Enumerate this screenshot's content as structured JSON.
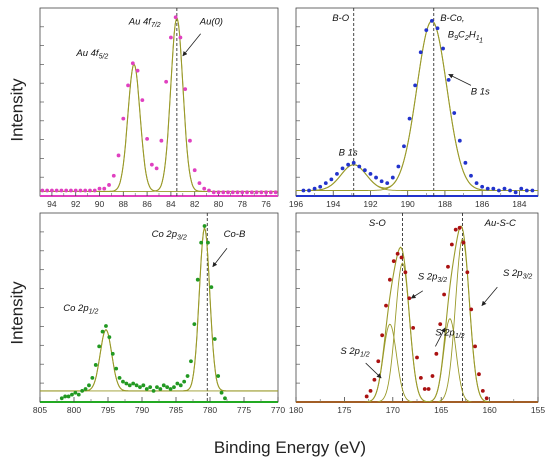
{
  "figure": {
    "ylabel": "Intensity",
    "xlabel": "Binding Energy (eV)"
  },
  "chart_data": [
    {
      "id": "au4f",
      "type": "scatter",
      "xlabel": "",
      "ylabel": "Intensity",
      "xlim": [
        95,
        75
      ],
      "ylim": [
        0,
        1.02
      ],
      "xticks": [
        94,
        92,
        90,
        88,
        86,
        84,
        82,
        80,
        78,
        76
      ],
      "axis_color": "#e040c0",
      "point_color": "#e040c0",
      "fit_color": "#9a9a2a",
      "points": [
        [
          94.8,
          0.03
        ],
        [
          94.4,
          0.03
        ],
        [
          94.0,
          0.03
        ],
        [
          93.6,
          0.03
        ],
        [
          93.2,
          0.03
        ],
        [
          92.8,
          0.03
        ],
        [
          92.4,
          0.03
        ],
        [
          92.0,
          0.03
        ],
        [
          91.6,
          0.03
        ],
        [
          91.2,
          0.03
        ],
        [
          90.8,
          0.03
        ],
        [
          90.4,
          0.03
        ],
        [
          90.0,
          0.04
        ],
        [
          89.6,
          0.04
        ],
        [
          89.2,
          0.06
        ],
        [
          88.8,
          0.11
        ],
        [
          88.4,
          0.22
        ],
        [
          88.0,
          0.42
        ],
        [
          87.6,
          0.6
        ],
        [
          87.2,
          0.72
        ],
        [
          86.8,
          0.68
        ],
        [
          86.4,
          0.52
        ],
        [
          86.0,
          0.31
        ],
        [
          85.6,
          0.17
        ],
        [
          85.2,
          0.15
        ],
        [
          84.8,
          0.3
        ],
        [
          84.4,
          0.62
        ],
        [
          84.0,
          0.86
        ],
        [
          83.6,
          0.97
        ],
        [
          83.2,
          0.86
        ],
        [
          82.8,
          0.58
        ],
        [
          82.4,
          0.3
        ],
        [
          82.0,
          0.14
        ],
        [
          81.6,
          0.07
        ],
        [
          81.2,
          0.04
        ],
        [
          80.8,
          0.03
        ],
        [
          80.4,
          0.02
        ],
        [
          80.0,
          0.02
        ],
        [
          79.6,
          0.02
        ],
        [
          79.2,
          0.02
        ],
        [
          78.8,
          0.02
        ],
        [
          78.4,
          0.02
        ],
        [
          78.0,
          0.02
        ],
        [
          77.6,
          0.02
        ],
        [
          77.2,
          0.02
        ],
        [
          76.8,
          0.02
        ],
        [
          76.4,
          0.02
        ],
        [
          76.0,
          0.02
        ],
        [
          75.6,
          0.02
        ],
        [
          75.2,
          0.02
        ]
      ],
      "fit_peaks": [
        {
          "center": 87.1,
          "height": 0.69,
          "fwhm": 1.2
        },
        {
          "center": 83.5,
          "height": 0.94,
          "fwhm": 1.2
        }
      ],
      "baseline": 0.025,
      "ref_lines": [
        83.5
      ],
      "annotations": [
        {
          "text": "Au 4f",
          "sub": "5/2",
          "x": 90.6,
          "y": 0.76
        },
        {
          "text": "Au 4f",
          "sub": "7/2",
          "x": 86.2,
          "y": 0.93
        },
        {
          "text": "Au(0)",
          "x": 80.6,
          "y": 0.93
        }
      ],
      "arrows": [
        {
          "from": [
            81.5,
            0.88
          ],
          "to": [
            83.0,
            0.76
          ]
        }
      ]
    },
    {
      "id": "b1s",
      "type": "scatter",
      "xlabel": "",
      "ylabel": "",
      "xlim": [
        196,
        183
      ],
      "ylim": [
        0,
        1.02
      ],
      "xticks": [
        196,
        194,
        192,
        190,
        188,
        186,
        184
      ],
      "axis_color": "#2233cc",
      "point_color": "#2233cc",
      "fit_color": "#9a9a2a",
      "points": [
        [
          195.6,
          0.03
        ],
        [
          195.3,
          0.03
        ],
        [
          195.0,
          0.04
        ],
        [
          194.7,
          0.05
        ],
        [
          194.4,
          0.07
        ],
        [
          194.1,
          0.09
        ],
        [
          193.8,
          0.12
        ],
        [
          193.5,
          0.15
        ],
        [
          193.2,
          0.17
        ],
        [
          192.9,
          0.18
        ],
        [
          192.6,
          0.16
        ],
        [
          192.3,
          0.14
        ],
        [
          192.0,
          0.12
        ],
        [
          191.7,
          0.1
        ],
        [
          191.4,
          0.08
        ],
        [
          191.1,
          0.07
        ],
        [
          190.8,
          0.1
        ],
        [
          190.5,
          0.16
        ],
        [
          190.2,
          0.27
        ],
        [
          189.9,
          0.42
        ],
        [
          189.6,
          0.6
        ],
        [
          189.3,
          0.78
        ],
        [
          189.0,
          0.9
        ],
        [
          188.7,
          0.95
        ],
        [
          188.4,
          0.91
        ],
        [
          188.1,
          0.8
        ],
        [
          187.8,
          0.63
        ],
        [
          187.5,
          0.45
        ],
        [
          187.2,
          0.3
        ],
        [
          186.9,
          0.18
        ],
        [
          186.6,
          0.11
        ],
        [
          186.3,
          0.07
        ],
        [
          186.0,
          0.05
        ],
        [
          185.7,
          0.04
        ],
        [
          185.4,
          0.04
        ],
        [
          185.1,
          0.03
        ],
        [
          184.8,
          0.04
        ],
        [
          184.5,
          0.03
        ],
        [
          184.2,
          0.02
        ],
        [
          183.9,
          0.04
        ],
        [
          183.6,
          0.03
        ],
        [
          183.3,
          0.03
        ]
      ],
      "fit_peaks": [
        {
          "center": 192.9,
          "height": 0.14,
          "fwhm": 1.6
        },
        {
          "center": 188.7,
          "height": 0.92,
          "fwhm": 1.9
        }
      ],
      "baseline": 0.03,
      "ref_lines": [
        192.9,
        188.6
      ],
      "annotations": [
        {
          "text": "B-O",
          "x": 193.6,
          "y": 0.95
        },
        {
          "text": "B-Co,",
          "x": 187.6,
          "y": 0.95
        },
        {
          "text": "B9C2H11",
          "x": 186.9,
          "y": 0.86,
          "formula": true
        },
        {
          "text": "B 1s",
          "x": 186.1,
          "y": 0.55
        },
        {
          "text": "B 1s",
          "x": 193.2,
          "y": 0.22
        }
      ],
      "arrows": [
        {
          "from": [
            186.6,
            0.6
          ],
          "to": [
            187.8,
            0.66
          ]
        }
      ]
    },
    {
      "id": "co2p",
      "type": "scatter",
      "xlabel": "Binding Energy (eV)",
      "ylabel": "Intensity",
      "xlim": [
        805,
        770
      ],
      "ylim": [
        0,
        1.02
      ],
      "xticks": [
        805,
        800,
        795,
        790,
        785,
        780,
        775,
        770
      ],
      "axis_color": "#22aa22",
      "point_color": "#229922",
      "fit_color": "#9a9a2a",
      "points": [
        [
          801.8,
          0.02
        ],
        [
          801.3,
          0.03
        ],
        [
          800.8,
          0.03
        ],
        [
          800.3,
          0.04
        ],
        [
          799.8,
          0.05
        ],
        [
          799.3,
          0.04
        ],
        [
          798.8,
          0.06
        ],
        [
          798.3,
          0.07
        ],
        [
          797.8,
          0.09
        ],
        [
          797.3,
          0.13
        ],
        [
          796.8,
          0.2
        ],
        [
          796.3,
          0.3
        ],
        [
          795.8,
          0.38
        ],
        [
          795.3,
          0.41
        ],
        [
          794.8,
          0.35
        ],
        [
          794.3,
          0.26
        ],
        [
          793.8,
          0.18
        ],
        [
          793.3,
          0.13
        ],
        [
          792.8,
          0.11
        ],
        [
          792.3,
          0.1
        ],
        [
          791.8,
          0.09
        ],
        [
          791.3,
          0.1
        ],
        [
          790.8,
          0.09
        ],
        [
          790.3,
          0.08
        ],
        [
          789.8,
          0.09
        ],
        [
          789.3,
          0.07
        ],
        [
          788.8,
          0.08
        ],
        [
          788.3,
          0.06
        ],
        [
          787.8,
          0.08
        ],
        [
          787.3,
          0.07
        ],
        [
          786.8,
          0.09
        ],
        [
          786.3,
          0.08
        ],
        [
          785.8,
          0.07
        ],
        [
          785.3,
          0.08
        ],
        [
          784.8,
          0.1
        ],
        [
          784.3,
          0.09
        ],
        [
          783.8,
          0.11
        ],
        [
          783.3,
          0.14
        ],
        [
          782.8,
          0.22
        ],
        [
          782.3,
          0.42
        ],
        [
          781.8,
          0.66
        ],
        [
          781.3,
          0.86
        ],
        [
          780.8,
          0.95
        ],
        [
          780.3,
          0.86
        ],
        [
          779.8,
          0.62
        ],
        [
          779.3,
          0.34
        ],
        [
          778.8,
          0.14
        ],
        [
          778.3,
          0.05
        ],
        [
          777.8,
          0.02
        ]
      ],
      "fit_peaks": [
        {
          "center": 795.3,
          "height": 0.33,
          "fwhm": 2.0
        },
        {
          "center": 780.8,
          "height": 0.88,
          "fwhm": 1.8
        }
      ],
      "baseline": 0.06,
      "ref_lines": [
        780.4
      ],
      "annotations": [
        {
          "text": "Co 2p",
          "sub": "3/2",
          "x": 786.0,
          "y": 0.89
        },
        {
          "text": "Co-B",
          "x": 776.4,
          "y": 0.89
        },
        {
          "text": "Co 2p",
          "sub": "1/2",
          "x": 799.0,
          "y": 0.49
        }
      ],
      "arrows": [
        {
          "from": [
            777.5,
            0.83
          ],
          "to": [
            779.6,
            0.73
          ]
        }
      ]
    },
    {
      "id": "s2p",
      "type": "scatter",
      "xlabel": "Binding Energy (eV)",
      "ylabel": "",
      "xlim": [
        180,
        155
      ],
      "ylim": [
        0,
        1.02
      ],
      "xticks": [
        180,
        175,
        170,
        165,
        160,
        155
      ],
      "axis_color": "#aa2222",
      "point_color": "#aa1111",
      "fit_color": "#9a9a2a",
      "points": [
        [
          172.7,
          0.03
        ],
        [
          172.3,
          0.06
        ],
        [
          171.9,
          0.12
        ],
        [
          171.5,
          0.22
        ],
        [
          171.1,
          0.36
        ],
        [
          170.7,
          0.52
        ],
        [
          170.3,
          0.66
        ],
        [
          169.9,
          0.76
        ],
        [
          169.5,
          0.8
        ],
        [
          169.1,
          0.78
        ],
        [
          168.7,
          0.7
        ],
        [
          168.3,
          0.56
        ],
        [
          167.9,
          0.4
        ],
        [
          167.5,
          0.24
        ],
        [
          167.1,
          0.13
        ],
        [
          166.7,
          0.07
        ],
        [
          166.3,
          0.07
        ],
        [
          165.9,
          0.14
        ],
        [
          165.5,
          0.26
        ],
        [
          165.1,
          0.42
        ],
        [
          164.7,
          0.58
        ],
        [
          164.3,
          0.73
        ],
        [
          163.9,
          0.85
        ],
        [
          163.5,
          0.93
        ],
        [
          163.1,
          0.94
        ],
        [
          162.7,
          0.86
        ],
        [
          162.3,
          0.7
        ],
        [
          161.9,
          0.5
        ],
        [
          161.5,
          0.3
        ],
        [
          161.1,
          0.15
        ],
        [
          160.7,
          0.06
        ],
        [
          160.3,
          0.02
        ]
      ],
      "fit_peaks": [
        {
          "center": 170.3,
          "height": 0.42,
          "fwhm": 1.6
        },
        {
          "center": 169.0,
          "height": 0.75,
          "fwhm": 1.7
        },
        {
          "center": 164.1,
          "height": 0.45,
          "fwhm": 1.5
        },
        {
          "center": 162.8,
          "height": 0.88,
          "fwhm": 1.7
        }
      ],
      "baseline": 0.0,
      "ref_lines": [
        169.0,
        162.8
      ],
      "annotations": [
        {
          "text": "S-O",
          "x": 171.6,
          "y": 0.95
        },
        {
          "text": "Au-S-C",
          "x": 158.9,
          "y": 0.95
        },
        {
          "text": "S 2p",
          "sub": "3/2",
          "x": 165.9,
          "y": 0.66
        },
        {
          "text": "S 2p",
          "sub": "3/2",
          "x": 157.1,
          "y": 0.68
        },
        {
          "text": "S 2p",
          "sub": "1/2",
          "x": 164.1,
          "y": 0.36
        },
        {
          "text": "S 2p",
          "sub": "1/2",
          "x": 173.9,
          "y": 0.26
        }
      ],
      "arrows": [
        {
          "from": [
            166.9,
            0.6
          ],
          "to": [
            168.1,
            0.56
          ]
        },
        {
          "from": [
            159.2,
            0.62
          ],
          "to": [
            160.8,
            0.52
          ]
        },
        {
          "from": [
            165.6,
            0.3
          ],
          "to": [
            164.6,
            0.4
          ]
        },
        {
          "from": [
            172.8,
            0.21
          ],
          "to": [
            171.2,
            0.13
          ]
        }
      ]
    }
  ]
}
